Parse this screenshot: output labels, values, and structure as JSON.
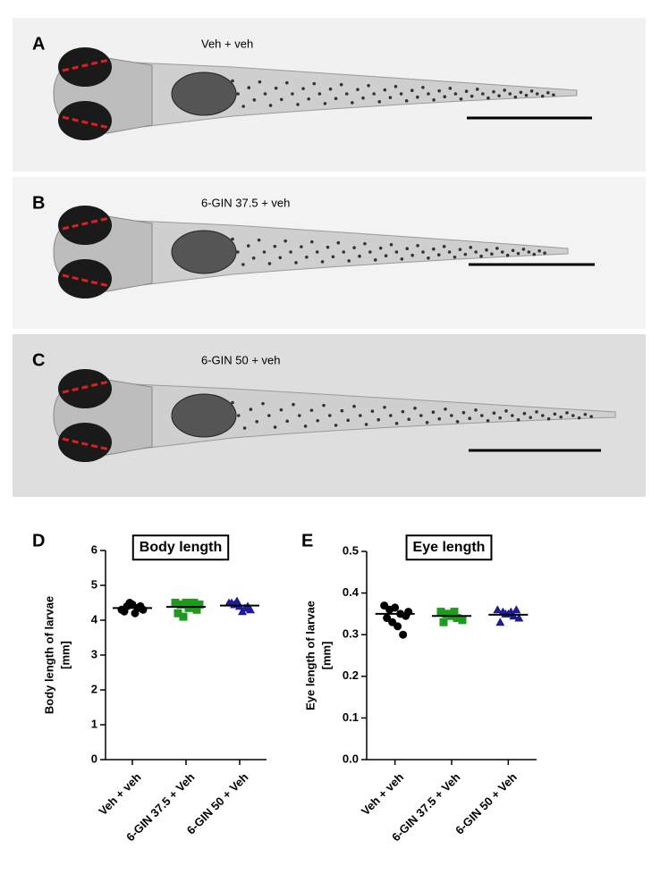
{
  "images": [
    {
      "label": "A",
      "caption": "Veh + veh"
    },
    {
      "label": "B",
      "caption": "6-GIN 37.5 + veh"
    },
    {
      "label": "C",
      "caption": "6-GIN 50 + veh"
    }
  ],
  "chart_data": [
    {
      "type": "dot",
      "panel_label": "D",
      "title": "Body length",
      "ylabel": [
        "Body length of larvae",
        "[mm]"
      ],
      "categories": [
        "Veh + veh",
        "6-GIN 37.5 + Veh",
        "6-GIN 50 + Veh"
      ],
      "groups": [
        {
          "color": "#000000",
          "marker": "circle",
          "values": [
            4.3,
            4.4,
            4.45,
            4.35,
            4.3,
            4.25,
            4.5,
            4.2,
            4.4
          ],
          "mean": 4.35
        },
        {
          "color": "#1f9a1f",
          "marker": "square",
          "values": [
            4.5,
            4.45,
            4.5,
            4.4,
            4.3,
            4.2,
            4.1,
            4.35,
            4.5,
            4.45
          ],
          "mean": 4.38
        },
        {
          "color": "#1c1c96",
          "marker": "triangle",
          "values": [
            4.5,
            4.45,
            4.4,
            4.35,
            4.3,
            4.5,
            4.55,
            4.25,
            4.4
          ],
          "mean": 4.42
        }
      ],
      "ylim": [
        0,
        6
      ],
      "yticks": [
        0,
        1,
        2,
        3,
        4,
        5,
        6
      ]
    },
    {
      "type": "dot",
      "panel_label": "E",
      "title": "Eye length",
      "ylabel": [
        "Eye length of larvae",
        "[mm]"
      ],
      "categories": [
        "Veh + veh",
        "6-GIN 37.5 + Veh",
        "6-GIN 50 + Veh"
      ],
      "groups": [
        {
          "color": "#000000",
          "marker": "circle",
          "values": [
            0.37,
            0.36,
            0.365,
            0.35,
            0.345,
            0.34,
            0.33,
            0.32,
            0.3,
            0.355
          ],
          "mean": 0.35
        },
        {
          "color": "#1f9a1f",
          "marker": "square",
          "values": [
            0.355,
            0.35,
            0.345,
            0.34,
            0.335,
            0.33,
            0.35,
            0.355
          ],
          "mean": 0.345
        },
        {
          "color": "#1c1c96",
          "marker": "triangle",
          "values": [
            0.36,
            0.355,
            0.35,
            0.345,
            0.34,
            0.33,
            0.35,
            0.355,
            0.36
          ],
          "mean": 0.348
        }
      ],
      "ylim": [
        0,
        0.5
      ],
      "yticks": [
        {
          "value": 0,
          "label": "0.0"
        },
        0.1,
        0.2,
        0.3,
        0.4,
        0.5
      ]
    }
  ]
}
